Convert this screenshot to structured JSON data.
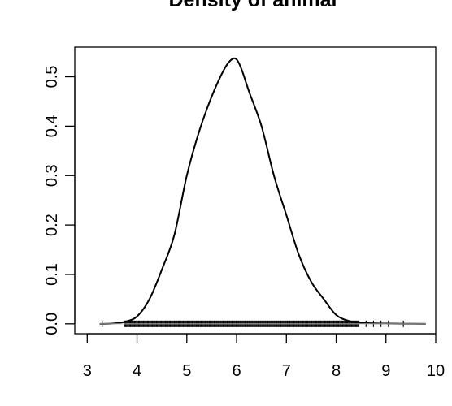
{
  "chart_data": {
    "type": "line",
    "title": "Density of animal",
    "xlabel": "",
    "ylabel": "",
    "xlim": [
      2.75,
      10.0
    ],
    "ylim": [
      -0.02,
      0.56
    ],
    "x_ticks": [
      3,
      4,
      5,
      6,
      7,
      8,
      9,
      10
    ],
    "x_tick_labels": [
      "3",
      "4",
      "5",
      "6",
      "7",
      "8",
      "9",
      "10"
    ],
    "y_ticks": [
      0.0,
      0.1,
      0.2,
      0.3,
      0.4,
      0.5
    ],
    "y_tick_labels": [
      "0.0",
      "0.1",
      "0.2",
      "0.3",
      "0.4",
      "0.5"
    ],
    "grid": false,
    "legend": "none",
    "colors": {
      "line": "#000000",
      "background": "#ffffff"
    },
    "series": [
      {
        "x": [
          3.25,
          3.5,
          3.75,
          4.0,
          4.25,
          4.5,
          4.75,
          5.0,
          5.25,
          5.5,
          5.75,
          5.9,
          6.0,
          6.1,
          6.25,
          6.5,
          6.75,
          7.0,
          7.25,
          7.5,
          7.75,
          8.0,
          8.25,
          8.5,
          9.0,
          9.8
        ],
        "y": [
          0.0,
          0.0005,
          0.004,
          0.015,
          0.05,
          0.11,
          0.18,
          0.3,
          0.39,
          0.46,
          0.515,
          0.535,
          0.535,
          0.515,
          0.47,
          0.4,
          0.3,
          0.22,
          0.14,
          0.085,
          0.05,
          0.018,
          0.006,
          0.002,
          0.0005,
          0.0
        ]
      }
    ],
    "rug": {
      "range": [
        3.75,
        8.45
      ],
      "outliers": [
        3.3,
        8.6,
        8.75,
        8.9,
        9.05,
        9.35
      ]
    }
  }
}
